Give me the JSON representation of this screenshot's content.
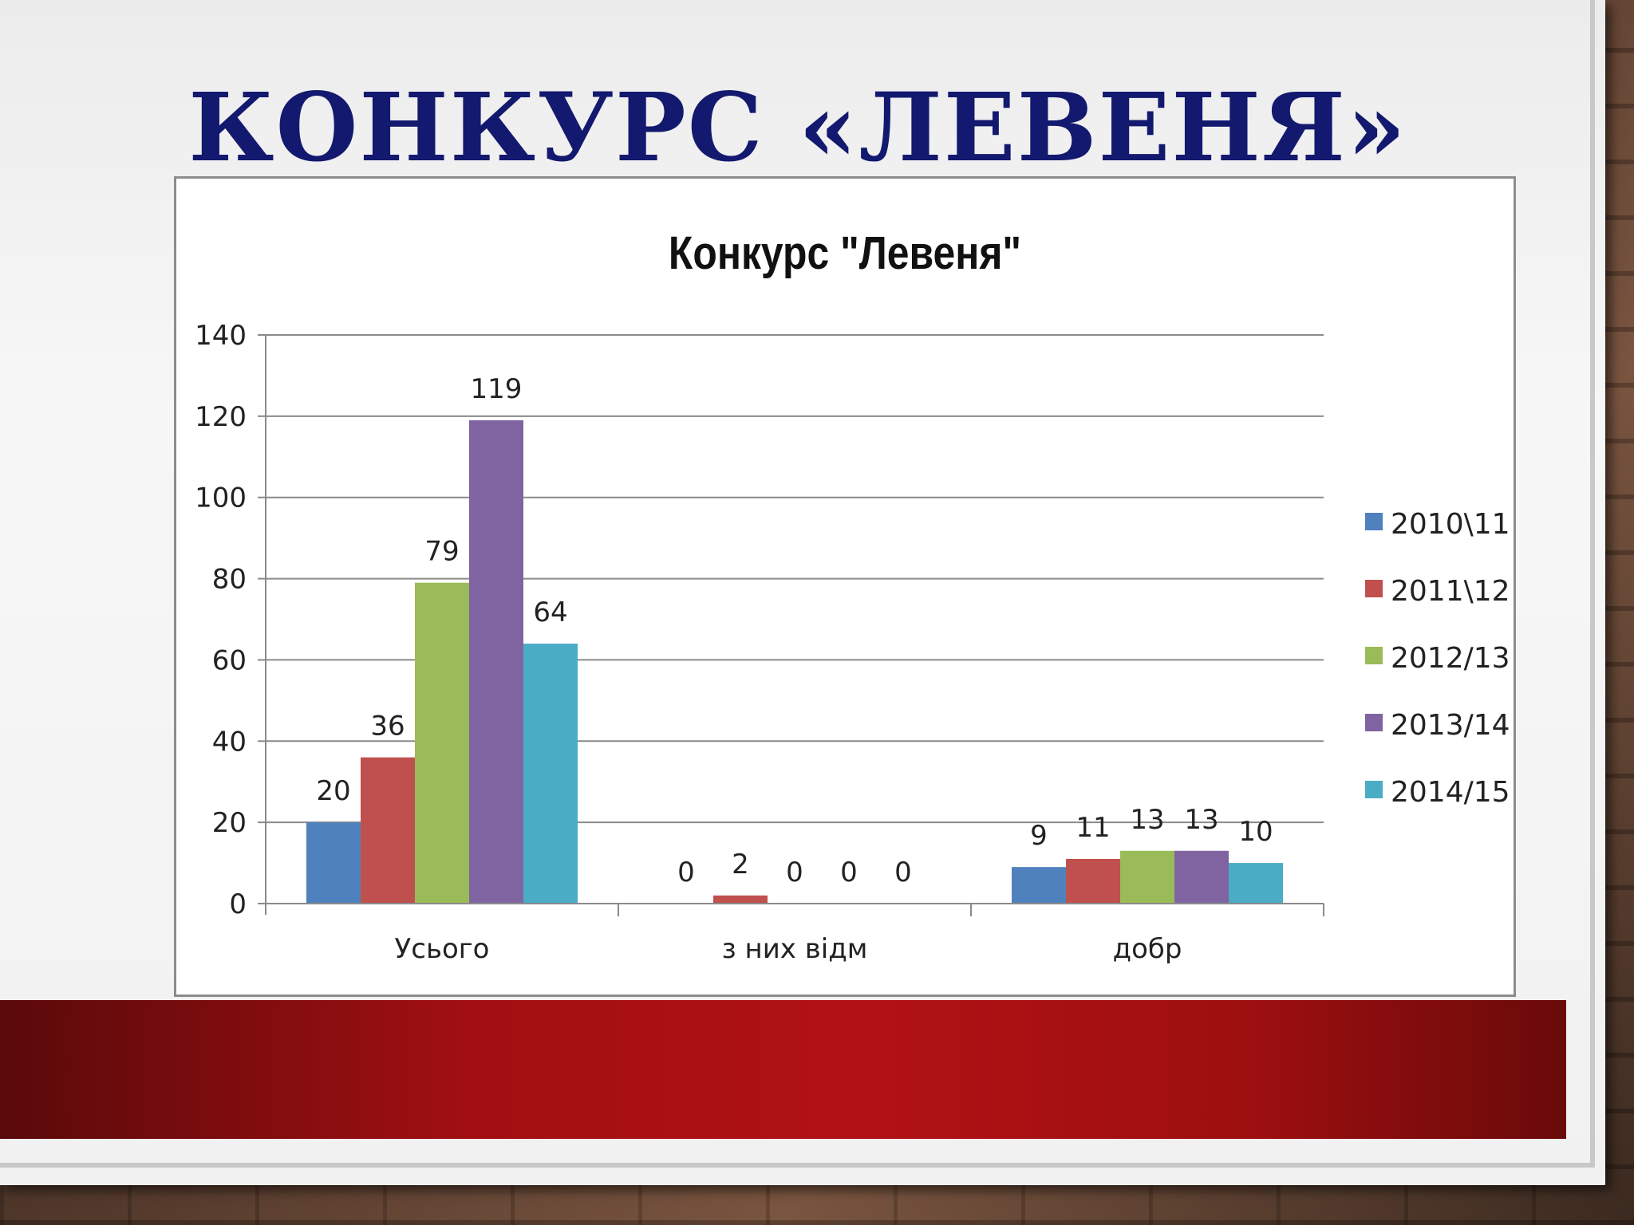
{
  "slide": {
    "title": "КОНКУРС «ЛЕВЕНЯ»"
  },
  "chart_data": {
    "type": "bar",
    "title": "Конкурс \"Левеня\"",
    "categories": [
      "Усього",
      "з них відм",
      "добр"
    ],
    "series": [
      {
        "name": "2010\\11",
        "color": "#4f81bd",
        "values": [
          20,
          0,
          9
        ]
      },
      {
        "name": "2011\\12",
        "color": "#c0504d",
        "values": [
          36,
          2,
          11
        ]
      },
      {
        "name": "2012/13",
        "color": "#9bbb59",
        "values": [
          79,
          0,
          13
        ]
      },
      {
        "name": "2013/14",
        "color": "#8064a2",
        "values": [
          119,
          0,
          13
        ]
      },
      {
        "name": "2014/15",
        "color": "#4bacc6",
        "values": [
          64,
          0,
          10
        ]
      }
    ],
    "ylim": [
      0,
      140
    ],
    "yticks": [
      0,
      20,
      40,
      60,
      80,
      100,
      120,
      140
    ],
    "grid": true,
    "legend": "right"
  }
}
